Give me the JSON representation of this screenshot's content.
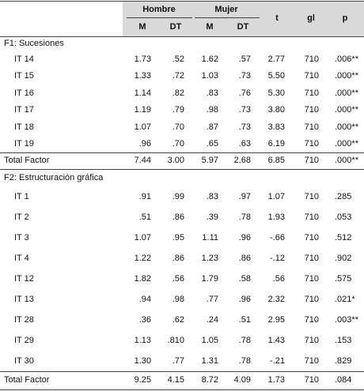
{
  "header": {
    "groups": [
      "Hombre",
      "Mujer"
    ],
    "sub": [
      "M",
      "DT",
      "M",
      "DT"
    ],
    "t": "t",
    "gl": "gl",
    "p": "p"
  },
  "sections": [
    {
      "title": "F1: Sucesiones",
      "rows": [
        [
          "IT 14",
          "1.73",
          ".52",
          "1.62",
          ".57",
          "2.77",
          "710",
          ".006**"
        ],
        [
          "IT 15",
          "1.33",
          ".72",
          "1.03",
          ".73",
          "5.50",
          "710",
          ".000**"
        ],
        [
          "IT 16",
          "1.14",
          ".82",
          ".83",
          ".76",
          "5.30",
          "710",
          ".000**"
        ],
        [
          "IT 17",
          "1.19",
          ".79",
          ".98",
          ".73",
          "3.80",
          "710",
          ".000**"
        ],
        [
          "IT 18",
          "1.07",
          ".70",
          ".87",
          ".73",
          "3.83",
          "710",
          ".000**"
        ],
        [
          "IT 19",
          ".96",
          ".70",
          ".65",
          ".63",
          "6.19",
          "710",
          ".000**"
        ]
      ],
      "total": [
        "Total Factor",
        "7.44",
        "3.00",
        "5.97",
        "2.68",
        "6.85",
        "710",
        ".000**"
      ]
    },
    {
      "title": "F2: Estructuración gráfica",
      "rows": [
        [
          "IT 1",
          ".91",
          ".99",
          ".83",
          ".97",
          "1.07",
          "710",
          ".285"
        ],
        [
          "IT 2",
          ".51",
          ".86",
          ".39",
          ".78",
          "1.93",
          "710",
          ".053"
        ],
        [
          "IT 3",
          "1.07",
          ".95",
          "1.11",
          ".96",
          "-.66",
          "710",
          ".512"
        ],
        [
          "IT 4",
          "1.22",
          ".86",
          "1.23",
          ".86",
          "-.12",
          "710",
          ".902"
        ],
        [
          "IT 12",
          "1.82",
          ".56",
          "1.79",
          ".58",
          ".56",
          "710",
          ".575"
        ],
        [
          "IT 13",
          ".94",
          ".98",
          ".77",
          ".96",
          "2.32",
          "710",
          ".021*"
        ],
        [
          "IT 28",
          ".36",
          ".62",
          ".24",
          ".51",
          "2.95",
          "710",
          ".003**"
        ],
        [
          "IT 29",
          "1.13",
          ".810",
          "1.05",
          ".78",
          "1.43",
          "710",
          ".153"
        ],
        [
          "IT 30",
          "1.30",
          ".77",
          "1.31",
          ".78",
          "-.21",
          "710",
          ".829"
        ]
      ],
      "total": [
        "Total Factor",
        "9.25",
        "4.15",
        "8.72",
        "4.09",
        "1.73",
        "710",
        ".084"
      ]
    }
  ]
}
